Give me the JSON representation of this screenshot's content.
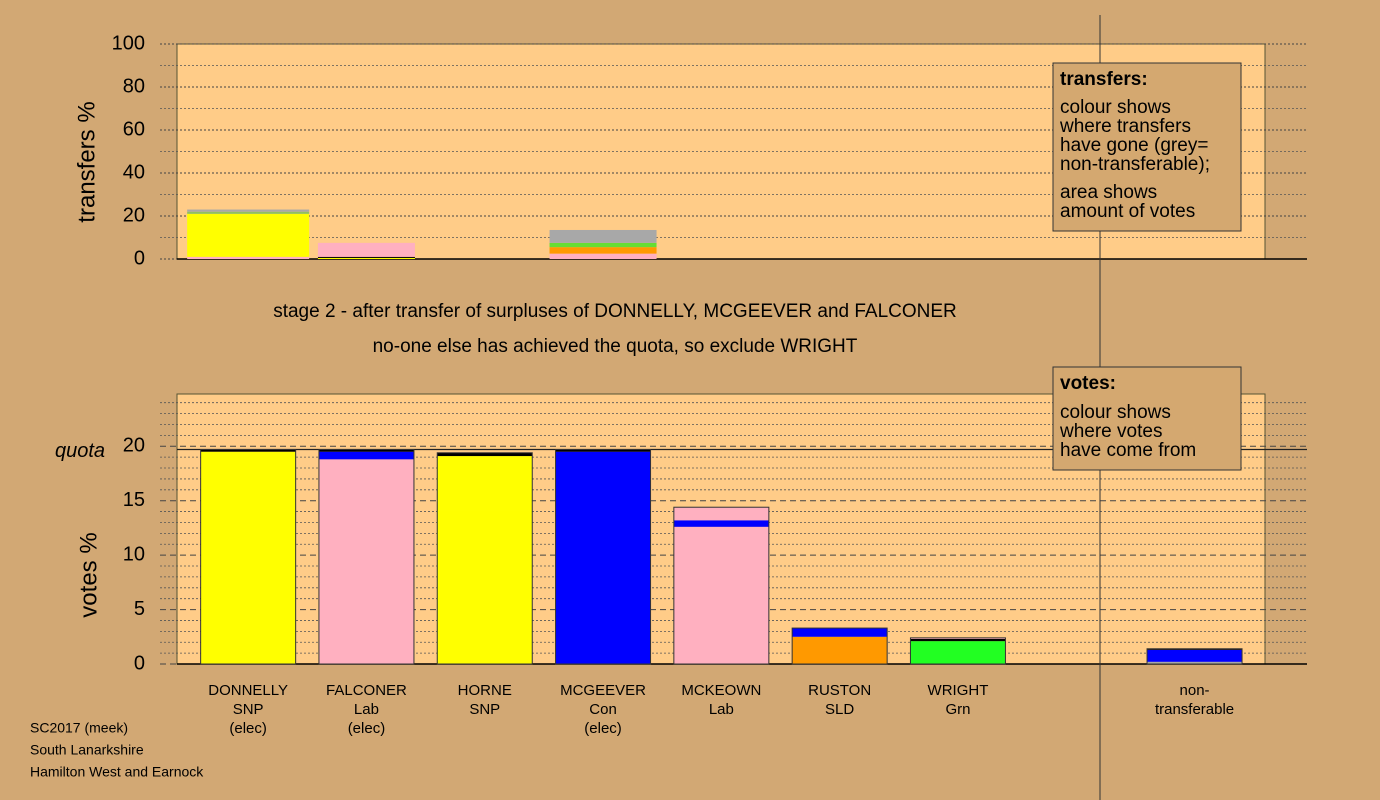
{
  "chart_data": [
    {
      "type": "stacked_bar",
      "ylabel": "transfers %",
      "ylim": [
        0,
        100
      ],
      "yticks": [
        0,
        20,
        40,
        60,
        80,
        100
      ],
      "minor_yticks": [
        10,
        30,
        50,
        70,
        90
      ],
      "stacks": [
        {
          "segments": [
            {
              "color": "#ffb0c0",
              "value": 1
            },
            {
              "color": "#ffff00",
              "value": 20
            },
            {
              "color": "#90c060",
              "value": 1
            },
            {
              "color": "#a8a8a8",
              "value": 1
            }
          ]
        },
        {
          "segments": [
            {
              "color": "#ffff00",
              "value": 0.5
            },
            {
              "color": "#000000",
              "value": 0.5
            },
            {
              "color": "#ffb0c0",
              "value": 6.5
            }
          ]
        },
        {
          "segments": [
            {
              "color": "#ffb0c0",
              "value": 2.5
            },
            {
              "color": "#ff9900",
              "value": 3
            },
            {
              "color": "#66dd33",
              "value": 2
            },
            {
              "color": "#a8a8a8",
              "value": 6
            }
          ]
        }
      ]
    },
    {
      "type": "stacked_bar",
      "ylabel": "votes %",
      "ylim": [
        0,
        24.8
      ],
      "yticks": [
        0,
        5,
        10,
        15,
        20
      ],
      "minor_yticks": [
        1,
        2,
        3,
        4,
        6,
        7,
        8,
        9,
        11,
        12,
        13,
        14,
        16,
        17,
        18,
        19,
        21,
        22,
        23,
        24
      ],
      "quota": {
        "value": 19.7,
        "label": "quota"
      },
      "categories": [
        [
          "DONNELLY",
          "SNP",
          "(elec)"
        ],
        [
          "FALCONER",
          "Lab",
          "(elec)"
        ],
        [
          "HORNE",
          "SNP"
        ],
        [
          "MCGEEVER",
          "Con",
          "(elec)"
        ],
        [
          "MCKEOWN",
          "Lab"
        ],
        [
          "RUSTON",
          "SLD"
        ],
        [
          "WRIGHT",
          "Grn"
        ],
        null,
        [
          "non-",
          "transferable"
        ]
      ],
      "stacks": [
        {
          "segments": [
            {
              "color": "#ffff00",
              "value": 19.5
            },
            {
              "color": "#000000",
              "value": 0.2
            }
          ]
        },
        {
          "segments": [
            {
              "color": "#ffb0c0",
              "value": 18.8
            },
            {
              "color": "#0000ff",
              "value": 0.7
            },
            {
              "color": "#000000",
              "value": 0.2
            }
          ]
        },
        {
          "segments": [
            {
              "color": "#ffff00",
              "value": 14.1
            },
            {
              "color": "#ffff00",
              "value": 5.0
            },
            {
              "color": "#000000",
              "value": 0.3
            }
          ]
        },
        {
          "segments": [
            {
              "color": "#0000ff",
              "value": 19.5
            },
            {
              "color": "#000000",
              "value": 0.2
            }
          ]
        },
        {
          "segments": [
            {
              "color": "#ffb0c0",
              "value": 12.6
            },
            {
              "color": "#0000ff",
              "value": 0.6
            },
            {
              "color": "#ffb0c0",
              "value": 1.2
            }
          ]
        },
        {
          "segments": [
            {
              "color": "#ff9900",
              "value": 2.5
            },
            {
              "color": "#0000ff",
              "value": 0.8
            }
          ]
        },
        {
          "segments": [
            {
              "color": "#22ff22",
              "value": 2.1
            },
            {
              "color": "#000000",
              "value": 0.2
            },
            {
              "color": "#ffb0c0",
              "value": 0.1
            }
          ]
        },
        null,
        {
          "segments": [
            {
              "color": "#a8a8a8",
              "value": 0.2
            },
            {
              "color": "#0000ff",
              "value": 1.1
            },
            {
              "color": "#000000",
              "value": 0.1
            }
          ]
        }
      ]
    }
  ],
  "notes": [
    "stage 2 - after transfer of surpluses of DONNELLY, MCGEEVER and FALCONER",
    "no-one else has achieved the quota, so exclude WRIGHT"
  ],
  "legend_transfers": {
    "title": "transfers:",
    "lines": [
      "colour shows",
      "where transfers",
      "have gone (grey=",
      "non-transferable);"
    ],
    "lines2": [
      "area shows",
      "amount of votes"
    ]
  },
  "legend_votes": {
    "title": "votes:",
    "lines": [
      "colour shows",
      "where votes",
      "have come from"
    ]
  },
  "footer": [
    "SC2017 (meek)",
    "South Lanarkshire",
    "Hamilton West and Earnock"
  ]
}
